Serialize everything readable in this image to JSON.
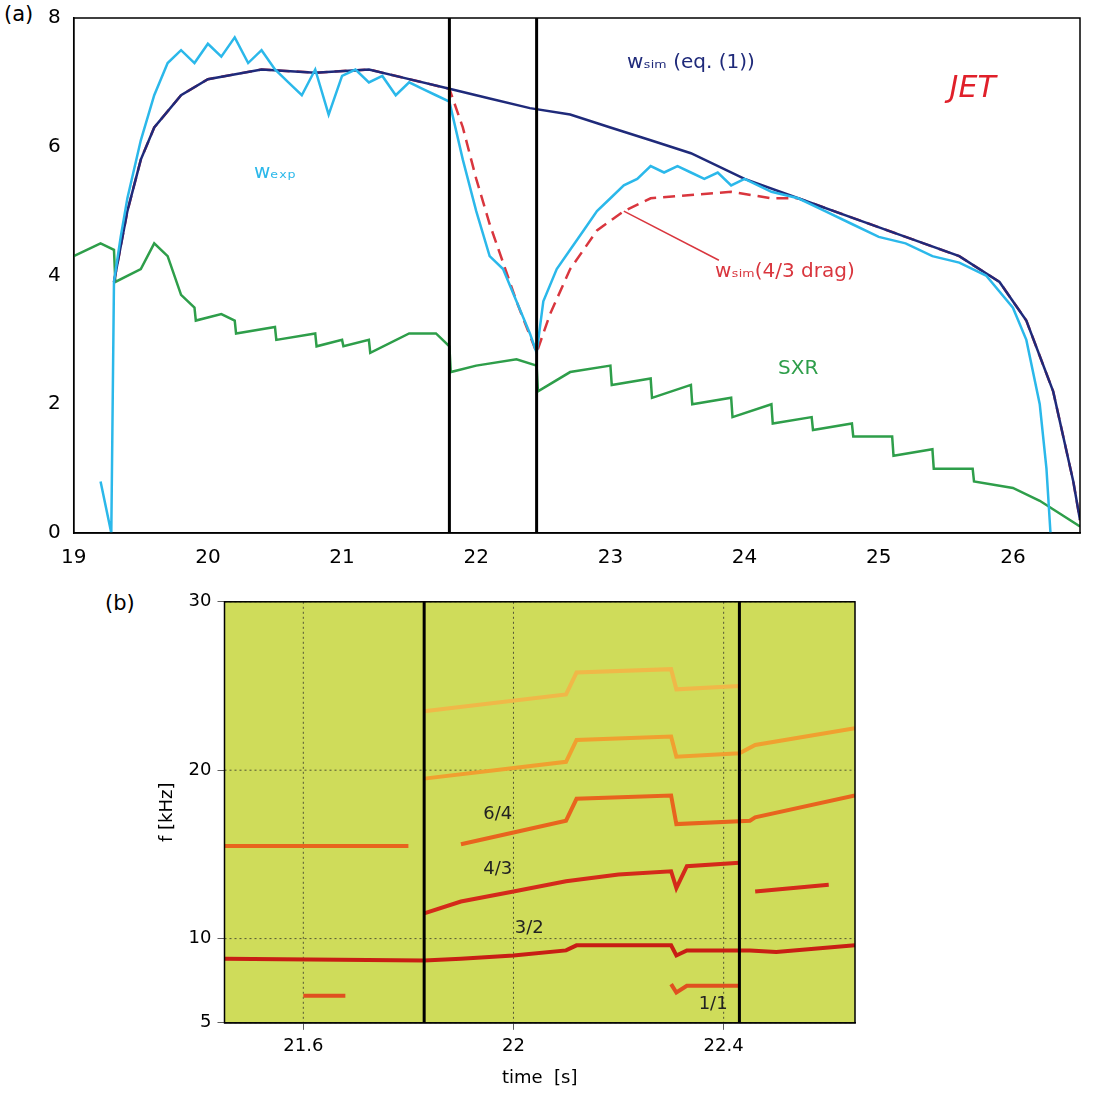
{
  "chart_data": [
    {
      "type": "line",
      "panel": "(a)",
      "grid": false,
      "xlim": [
        19,
        26.5
      ],
      "xticks": [
        19,
        20,
        21,
        22,
        23,
        24,
        25,
        26
      ],
      "ylim": [
        0,
        8
      ],
      "yticks": [
        0,
        2,
        4,
        6,
        8
      ],
      "vlines": [
        21.8,
        22.45
      ],
      "series": [
        {
          "name": "wₑₓₚ",
          "color": "#2bb8ea",
          "marker": "none",
          "line_style": "solid",
          "x": [
            19.2,
            19.28,
            19.3,
            19.35,
            19.4,
            19.5,
            19.6,
            19.7,
            19.8,
            19.9,
            20.0,
            20.1,
            20.2,
            20.3,
            20.4,
            20.5,
            20.6,
            20.7,
            20.8,
            20.9,
            21.0,
            21.1,
            21.2,
            21.3,
            21.4,
            21.5,
            21.6,
            21.7,
            21.8,
            21.9,
            22.0,
            22.1,
            22.2,
            22.3,
            22.4,
            22.45,
            22.5,
            22.6,
            22.7,
            22.8,
            22.9,
            23.0,
            23.1,
            23.2,
            23.3,
            23.4,
            23.5,
            23.6,
            23.7,
            23.8,
            23.9,
            24.0,
            24.2,
            24.4,
            24.6,
            24.8,
            25.0,
            25.2,
            25.4,
            25.6,
            25.8,
            26.0,
            26.1,
            26.2,
            26.25,
            26.28
          ],
          "values": [
            0.8,
            0.0,
            3.9,
            4.6,
            5.2,
            6.1,
            6.8,
            7.3,
            7.5,
            7.3,
            7.6,
            7.4,
            7.7,
            7.3,
            7.5,
            7.2,
            7.0,
            6.8,
            7.2,
            6.5,
            7.1,
            7.2,
            7.0,
            7.1,
            6.8,
            7.0,
            6.9,
            6.8,
            6.7,
            5.8,
            5.0,
            4.3,
            4.1,
            3.6,
            3.1,
            2.8,
            3.6,
            4.1,
            4.4,
            4.7,
            5.0,
            5.2,
            5.4,
            5.5,
            5.7,
            5.6,
            5.7,
            5.6,
            5.5,
            5.6,
            5.4,
            5.5,
            5.3,
            5.2,
            5.0,
            4.8,
            4.6,
            4.5,
            4.3,
            4.2,
            4.0,
            3.5,
            3.0,
            2.0,
            1.0,
            0.0
          ]
        },
        {
          "name": "wₛᵢₘ (eq. (1))",
          "color": "#1f2a7a",
          "marker": "none",
          "line_style": "solid",
          "x": [
            19.3,
            19.4,
            19.5,
            19.6,
            19.8,
            20.0,
            20.4,
            20.8,
            21.2,
            21.5,
            21.8,
            22.1,
            22.4,
            22.7,
            23.0,
            23.3,
            23.6,
            24.0,
            24.4,
            24.8,
            25.2,
            25.6,
            25.9,
            26.1,
            26.3,
            26.45,
            26.5
          ],
          "values": [
            3.9,
            5.0,
            5.8,
            6.3,
            6.8,
            7.05,
            7.2,
            7.15,
            7.2,
            7.05,
            6.9,
            6.75,
            6.6,
            6.5,
            6.3,
            6.1,
            5.9,
            5.5,
            5.2,
            4.9,
            4.6,
            4.3,
            3.9,
            3.3,
            2.2,
            0.8,
            0.2
          ]
        },
        {
          "name": "wₛᵢₘ(4/3 drag)",
          "color": "#d9363e",
          "marker": "none",
          "line_style": "dashed",
          "x": [
            19.3,
            19.4,
            19.5,
            19.6,
            19.8,
            20.0,
            20.4,
            20.8,
            21.2,
            21.5,
            21.8,
            21.9,
            22.0,
            22.1,
            22.2,
            22.3,
            22.45,
            22.55,
            22.7,
            22.9,
            23.1,
            23.3,
            23.6,
            23.9,
            24.2,
            24.4,
            24.8,
            25.2,
            25.6,
            25.9,
            26.1,
            26.3,
            26.45,
            26.5
          ],
          "values": [
            3.9,
            5.0,
            5.8,
            6.3,
            6.8,
            7.05,
            7.2,
            7.15,
            7.2,
            7.05,
            6.9,
            6.3,
            5.5,
            4.8,
            4.2,
            3.6,
            2.8,
            3.4,
            4.1,
            4.7,
            5.0,
            5.2,
            5.25,
            5.3,
            5.2,
            5.2,
            4.9,
            4.6,
            4.3,
            3.9,
            3.3,
            2.2,
            0.8,
            0.2
          ]
        },
        {
          "name": "SXR",
          "color": "#2e9e4a",
          "marker": "none",
          "line_style": "solid",
          "x": [
            19.0,
            19.2,
            19.3,
            19.31,
            19.5,
            19.6,
            19.7,
            19.8,
            19.9,
            19.91,
            20.1,
            20.2,
            20.21,
            20.5,
            20.51,
            20.8,
            20.81,
            21.0,
            21.01,
            21.2,
            21.21,
            21.5,
            21.7,
            21.8,
            21.81,
            22.0,
            22.3,
            22.45,
            22.46,
            22.7,
            23.0,
            23.01,
            23.3,
            23.31,
            23.6,
            23.61,
            23.9,
            23.91,
            24.2,
            24.21,
            24.5,
            24.51,
            24.8,
            24.81,
            25.1,
            25.11,
            25.4,
            25.41,
            25.7,
            25.71,
            26.0,
            26.2,
            26.5
          ],
          "values": [
            4.3,
            4.5,
            4.4,
            3.9,
            4.1,
            4.5,
            4.3,
            3.7,
            3.5,
            3.3,
            3.4,
            3.3,
            3.1,
            3.2,
            3.0,
            3.1,
            2.9,
            3.0,
            2.9,
            3.0,
            2.8,
            3.1,
            3.1,
            2.9,
            2.5,
            2.6,
            2.7,
            2.6,
            2.2,
            2.5,
            2.6,
            2.3,
            2.4,
            2.1,
            2.3,
            2.0,
            2.1,
            1.8,
            2.0,
            1.7,
            1.8,
            1.6,
            1.7,
            1.5,
            1.5,
            1.2,
            1.3,
            1.0,
            1.0,
            0.8,
            0.7,
            0.5,
            0.1
          ]
        }
      ],
      "annotations": [
        {
          "text": "wₑₓₚ",
          "x": 20.5,
          "y": 5.6,
          "color": "#2bb8ea"
        },
        {
          "text": "wₛᵢₘ (eq. (1))",
          "x": 23.6,
          "y": 7.3,
          "color": "#1f2a7a"
        },
        {
          "text": "wₛᵢₘ(4/3 drag)",
          "x": 24.3,
          "y": 4.05,
          "color": "#d9363e",
          "points_to": [
            23.1,
            5.0
          ]
        },
        {
          "text": "SXR",
          "x": 24.4,
          "y": 2.55,
          "color": "#2e9e4a"
        },
        {
          "text": "JET",
          "x": 25.7,
          "y": 6.9,
          "color": "#e0202a"
        }
      ]
    },
    {
      "type": "line",
      "panel": "(b)",
      "grid": true,
      "color": "#cfdc5a",
      "x_label": "time  [s]",
      "y_label": "f [kHz]",
      "xlim": [
        21.45,
        22.65
      ],
      "xticks": [
        21.6,
        22,
        22.4
      ],
      "ylim": [
        5,
        30
      ],
      "yticks": [
        5,
        10,
        20,
        30
      ],
      "vlines": [
        21.83,
        22.43
      ],
      "series": [
        {
          "color": "#f0a030",
          "marker": "none",
          "line_style": "solid",
          "x": [
            21.83,
            22.1,
            22.12,
            22.3,
            22.31,
            22.43,
            22.46,
            22.65
          ],
          "values": [
            19.5,
            20.5,
            21.8,
            22.0,
            20.8,
            21.0,
            21.5,
            22.5
          ]
        },
        {
          "color": "#f0b848",
          "marker": "none",
          "line_style": "solid",
          "x": [
            21.83,
            22.1,
            22.12,
            22.3,
            22.31,
            22.43
          ],
          "values": [
            23.5,
            24.5,
            25.8,
            26.0,
            24.8,
            25.0
          ]
        },
        {
          "color": "#e8641e",
          "marker": "none",
          "line_style": "solid",
          "x": [
            21.45,
            21.8,
            21.83,
            21.9,
            22.0,
            22.1,
            22.12,
            22.3,
            22.31,
            22.45,
            22.46,
            22.65
          ],
          "values": [
            15.5,
            15.5,
            null,
            15.6,
            16.3,
            17.0,
            18.3,
            18.5,
            16.8,
            17.0,
            17.2,
            18.5
          ]
        },
        {
          "color": "#d42a1a",
          "marker": "none",
          "line_style": "solid",
          "x": [
            21.83,
            21.9,
            22.0,
            22.1,
            22.2,
            22.3,
            22.31,
            22.33,
            22.43,
            22.44,
            22.46,
            22.6
          ],
          "values": [
            11.5,
            12.2,
            12.8,
            13.4,
            13.8,
            14.0,
            13.0,
            14.3,
            14.5,
            null,
            12.8,
            13.2
          ]
        },
        {
          "color": "#c81e14",
          "marker": "none",
          "line_style": "solid",
          "x": [
            21.45,
            21.83,
            21.9,
            22.0,
            22.1,
            22.12,
            22.3,
            22.31,
            22.33,
            22.45,
            22.5,
            22.65
          ],
          "values": [
            8.8,
            8.7,
            8.8,
            9.0,
            9.3,
            9.6,
            9.6,
            9.0,
            9.3,
            9.3,
            9.2,
            9.6
          ]
        },
        {
          "color": "#e05020",
          "marker": "none",
          "line_style": "solid",
          "x": [
            21.6,
            21.68,
            21.69,
            22.3,
            22.31,
            22.33,
            22.43
          ],
          "values": [
            6.6,
            6.6,
            null,
            7.3,
            6.8,
            7.2,
            7.2
          ]
        }
      ],
      "annotations": [
        {
          "text": "6/4",
          "x": 21.97,
          "y": 17.4,
          "color": "#222222"
        },
        {
          "text": "4/3",
          "x": 21.97,
          "y": 14.1,
          "color": "#222222"
        },
        {
          "text": "3/2",
          "x": 22.03,
          "y": 10.6,
          "color": "#222222"
        },
        {
          "text": "1/1",
          "x": 22.38,
          "y": 6.1,
          "color": "#222222"
        }
      ]
    }
  ]
}
